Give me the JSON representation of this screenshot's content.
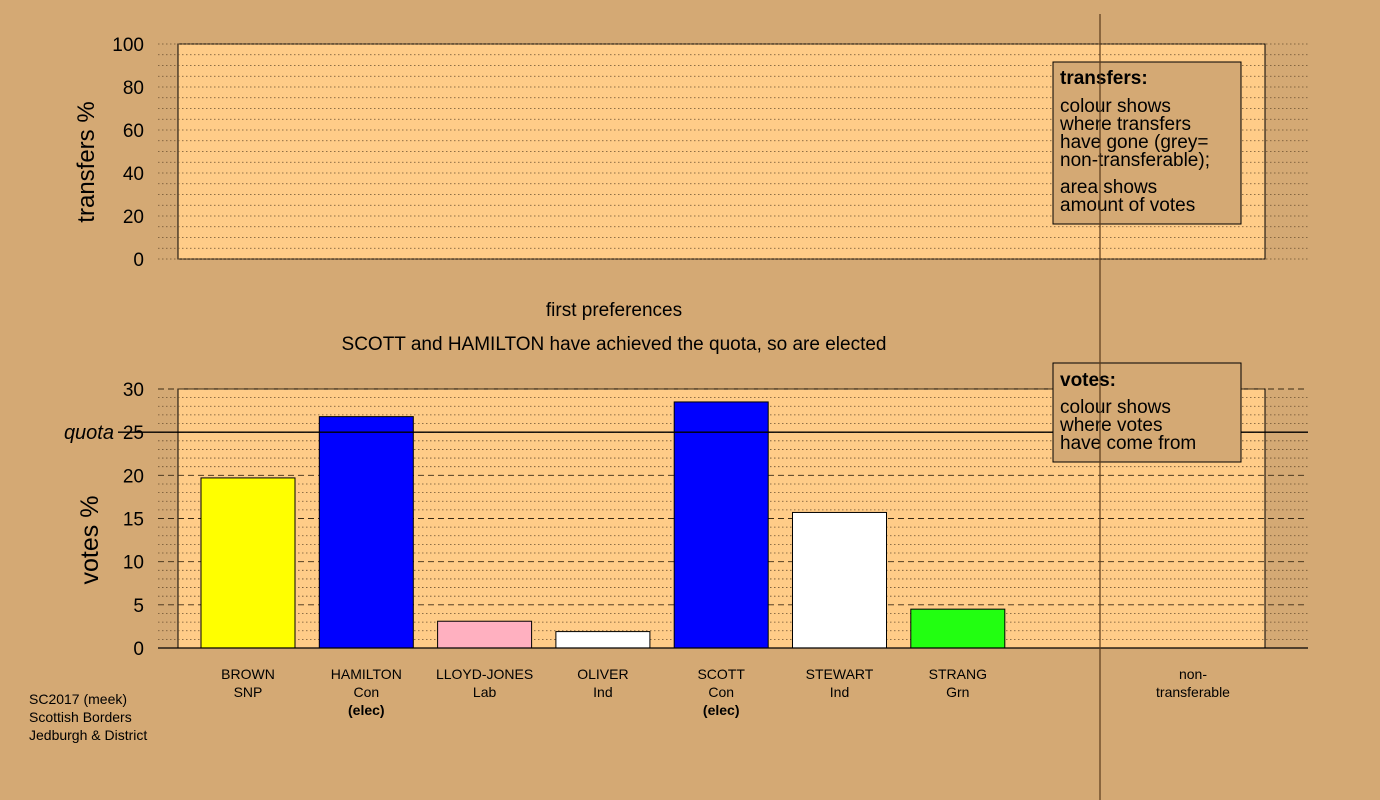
{
  "chart_data": [
    {
      "type": "bar",
      "name": "transfers",
      "ylabel": "transfers %",
      "ylim": [
        0,
        100
      ],
      "yticks": [
        0,
        20,
        40,
        60,
        80,
        100
      ],
      "categories": [],
      "values": [],
      "legend": {
        "title": "transfers:",
        "lines": [
          "colour shows",
          "where transfers",
          "have gone (grey=",
          "non-transferable);",
          "area shows",
          "amount of votes"
        ]
      }
    },
    {
      "type": "bar",
      "name": "first preferences",
      "title": "first preferences",
      "subtitle": "SCOTT and HAMILTON have achieved the quota, so are elected",
      "ylabel": "votes %",
      "ylim": [
        0,
        30
      ],
      "yticks": [
        0,
        5,
        10,
        15,
        20,
        25,
        30
      ],
      "quota": {
        "label": "quota",
        "value": 25
      },
      "categories": [
        "BROWN",
        "HAMILTON",
        "LLOYD-JONES",
        "OLIVER",
        "SCOTT",
        "STEWART",
        "STRANG"
      ],
      "parties": [
        "SNP",
        "Con",
        "Lab",
        "Ind",
        "Con",
        "Ind",
        "Grn"
      ],
      "status": [
        "",
        "(elec)",
        "",
        "",
        "(elec)",
        "",
        ""
      ],
      "values": [
        19.7,
        26.8,
        3.1,
        1.9,
        28.5,
        15.7,
        4.5
      ],
      "colors": [
        "#ffff00",
        "#0000ff",
        "#ffb0c0",
        "#ffffff",
        "#0000ff",
        "#ffffff",
        "#22ff11"
      ],
      "extra_category": [
        "non-",
        "transferable"
      ],
      "legend": {
        "title": "votes:",
        "lines": [
          "colour shows",
          "where votes",
          "have come from"
        ]
      }
    }
  ],
  "footer": [
    "SC2017 (meek)",
    "Scottish Borders",
    "Jedburgh & District"
  ]
}
